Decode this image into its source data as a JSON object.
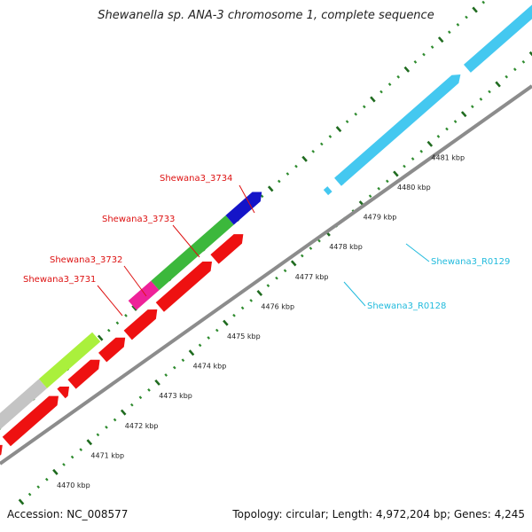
{
  "title": "Shewanella sp. ANA-3 chromosome 1, complete sequence",
  "footer": {
    "accession": "Accession: NC_008577",
    "topology": "Topology: circular; Length: 4,972,204 bp; Genes: 4,245"
  },
  "colors": {
    "backbone": "#8c8c8c",
    "cds_forward": "#ee1111",
    "tick_major": "#1f6b1f",
    "tick_minor": "#2e8b2e",
    "trna": "#44c8f0",
    "gene_green": "#3cb83c",
    "gene_lime": "#aaf03c",
    "gene_gray": "#c4c4c4",
    "gene_magenta": "#ee2299",
    "gene_blue": "#1414c8",
    "label_red": "#dd1111",
    "label_cyan": "#22bbdd"
  },
  "scale_labels": [
    "4470 kbp",
    "4471 kbp",
    "4472 kbp",
    "4473 kbp",
    "4474 kbp",
    "4475 kbp",
    "4476 kbp",
    "4477 kbp",
    "4478 kbp",
    "4479 kbp",
    "4480 kbp",
    "4481 kbp"
  ],
  "gene_labels": [
    {
      "name": "Shewana3_3734",
      "color": "label_red"
    },
    {
      "name": "Shewana3_3733",
      "color": "label_red"
    },
    {
      "name": "Shewana3_3732",
      "color": "label_red"
    },
    {
      "name": "Shewana3_3731",
      "color": "label_red"
    },
    {
      "name": "Shewana3_R0129",
      "color": "label_cyan"
    },
    {
      "name": "Shewana3_R0128",
      "color": "label_cyan"
    }
  ]
}
